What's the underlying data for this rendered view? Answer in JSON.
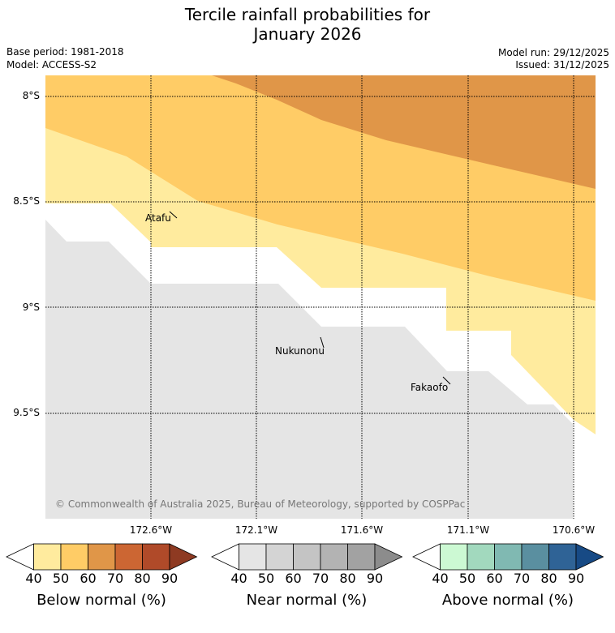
{
  "title": {
    "line1": "Tercile rainfall probabilities for",
    "line2": "January 2026"
  },
  "meta": {
    "base_period": "Base period: 1981-2018",
    "model": "Model: ACCESS-S2",
    "model_run": "Model run: 29/12/2025",
    "issued": "Issued: 31/12/2025"
  },
  "map": {
    "lat_labels": [
      "8°S",
      "8.5°S",
      "9°S",
      "9.5°S"
    ],
    "lon_labels": [
      "172.6°W",
      "172.1°W",
      "171.6°W",
      "171.1°W",
      "170.6°W"
    ],
    "places": [
      {
        "name": "Atafu"
      },
      {
        "name": "Nukunonu"
      },
      {
        "name": "Fakaofo"
      }
    ],
    "copyright": "© Commonwealth of Australia 2025, Bureau of Meteorology, supported by COSPPac",
    "colors": {
      "below_40": "#ffeb9e",
      "below_50": "#ffcc66",
      "below_60": "#e09648",
      "near_40": "#e5e5e5"
    }
  },
  "colorbars": [
    {
      "label": "Below normal (%)",
      "ticks": [
        "40",
        "50",
        "60",
        "70",
        "80",
        "90"
      ],
      "colors": [
        "#ffffff",
        "#ffeb9e",
        "#ffcc66",
        "#e09648",
        "#cc6633",
        "#b04a29",
        "#8e3a22"
      ]
    },
    {
      "label": "Near normal (%)",
      "ticks": [
        "40",
        "50",
        "60",
        "70",
        "80",
        "90"
      ],
      "colors": [
        "#ffffff",
        "#e5e5e5",
        "#d4d4d4",
        "#c4c4c4",
        "#b3b3b3",
        "#a2a2a2",
        "#8c8c8c"
      ]
    },
    {
      "label": "Above normal (%)",
      "ticks": [
        "40",
        "50",
        "60",
        "70",
        "80",
        "90"
      ],
      "colors": [
        "#ffffff",
        "#ccf9d3",
        "#a2d9be",
        "#80b9b2",
        "#5a8fa0",
        "#2f6396",
        "#174a85"
      ]
    }
  ]
}
